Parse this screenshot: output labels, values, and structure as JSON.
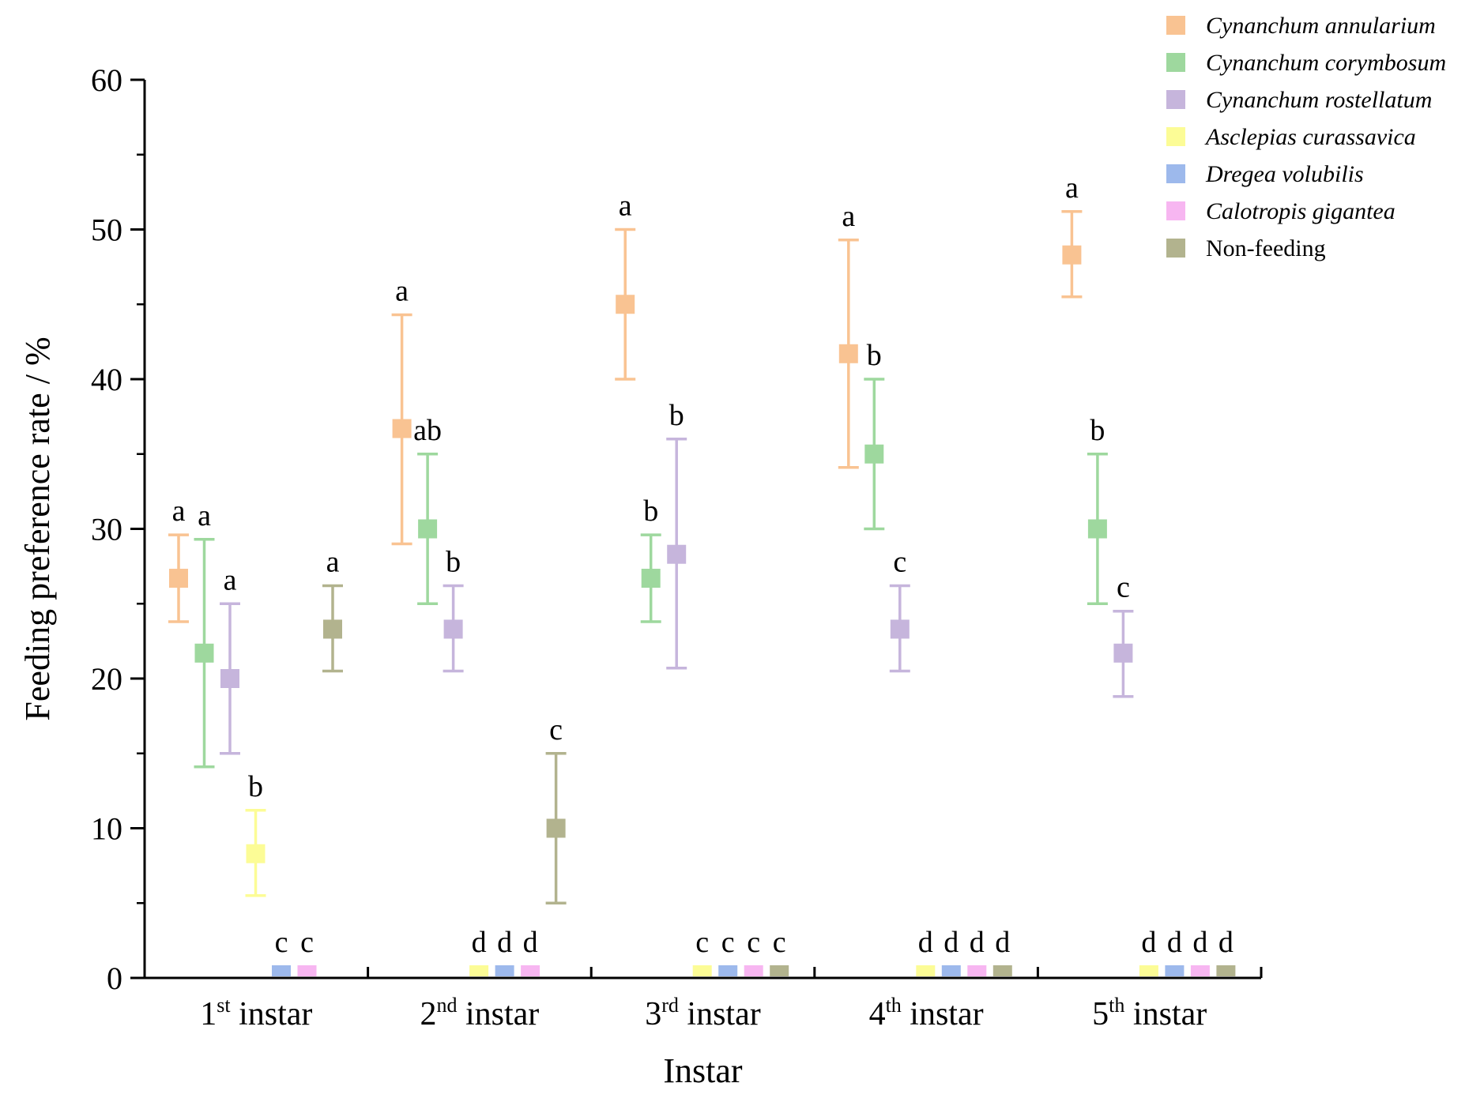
{
  "chart_data": {
    "type": "scatter",
    "xlabel": "Instar",
    "ylabel": "Feeding preference rate / %",
    "ylim": [
      0,
      60
    ],
    "yticks": [
      0,
      10,
      20,
      30,
      40,
      50,
      60
    ],
    "categories": [
      {
        "num": "1",
        "sup": "st",
        "word": " instar"
      },
      {
        "num": "2",
        "sup": "nd",
        "word": " instar"
      },
      {
        "num": "3",
        "sup": "rd",
        "word": " instar"
      },
      {
        "num": "4",
        "sup": "th",
        "word": " instar"
      },
      {
        "num": "5",
        "sup": "th",
        "word": " instar"
      }
    ],
    "series": [
      {
        "name": "Cynanchum annularium",
        "color": "#F9C392",
        "italic": true,
        "points": [
          {
            "mean": 26.7,
            "lo": 23.8,
            "hi": 29.6,
            "label": "a"
          },
          {
            "mean": 36.7,
            "lo": 29.0,
            "hi": 44.3,
            "label": "a"
          },
          {
            "mean": 45.0,
            "lo": 40.0,
            "hi": 50.0,
            "label": "a"
          },
          {
            "mean": 41.7,
            "lo": 34.1,
            "hi": 49.3,
            "label": "a"
          },
          {
            "mean": 48.3,
            "lo": 45.5,
            "hi": 51.2,
            "label": "a"
          }
        ]
      },
      {
        "name": "Cynanchum corymbosum",
        "color": "#9ED89E",
        "italic": true,
        "points": [
          {
            "mean": 21.7,
            "lo": 14.1,
            "hi": 29.3,
            "label": "a"
          },
          {
            "mean": 30.0,
            "lo": 25.0,
            "hi": 35.0,
            "label": "ab"
          },
          {
            "mean": 26.7,
            "lo": 23.8,
            "hi": 29.6,
            "label": "b"
          },
          {
            "mean": 35.0,
            "lo": 30.0,
            "hi": 40.0,
            "label": "b"
          },
          {
            "mean": 30.0,
            "lo": 25.0,
            "hi": 35.0,
            "label": "b"
          }
        ]
      },
      {
        "name": "Cynanchum rostellatum",
        "color": "#C6B5DC",
        "italic": true,
        "points": [
          {
            "mean": 20.0,
            "lo": 15.0,
            "hi": 25.0,
            "label": "a"
          },
          {
            "mean": 23.3,
            "lo": 20.5,
            "hi": 26.2,
            "label": "b"
          },
          {
            "mean": 28.3,
            "lo": 20.7,
            "hi": 36.0,
            "label": "b"
          },
          {
            "mean": 23.3,
            "lo": 20.5,
            "hi": 26.2,
            "label": "c"
          },
          {
            "mean": 21.7,
            "lo": 18.8,
            "hi": 24.5,
            "label": "c"
          }
        ]
      },
      {
        "name": "Asclepias curassavica",
        "color": "#FCFC96",
        "italic": true,
        "points": [
          {
            "mean": 8.3,
            "lo": 5.5,
            "hi": 11.2,
            "label": "b"
          },
          {
            "mean": 0,
            "label": "d"
          },
          {
            "mean": 0,
            "label": "c"
          },
          {
            "mean": 0,
            "label": "d"
          },
          {
            "mean": 0,
            "label": "d"
          }
        ]
      },
      {
        "name": "Dregea volubilis",
        "color": "#9DB9EC",
        "italic": true,
        "points": [
          {
            "mean": 0,
            "label": "c"
          },
          {
            "mean": 0,
            "label": "d"
          },
          {
            "mean": 0,
            "label": "c"
          },
          {
            "mean": 0,
            "label": "d"
          },
          {
            "mean": 0,
            "label": "d"
          }
        ]
      },
      {
        "name": "Calotropis gigantea",
        "color": "#F7B6F1",
        "italic": true,
        "points": [
          {
            "mean": 0,
            "label": "c"
          },
          {
            "mean": 0,
            "label": "d"
          },
          {
            "mean": 0,
            "label": "c"
          },
          {
            "mean": 0,
            "label": "d"
          },
          {
            "mean": 0,
            "label": "d"
          }
        ]
      },
      {
        "name": "Non-feeding",
        "color": "#B2B38E",
        "italic": false,
        "points": [
          {
            "mean": 23.3,
            "lo": 20.5,
            "hi": 26.2,
            "label": "a"
          },
          {
            "mean": 10.0,
            "lo": 5.0,
            "hi": 15.0,
            "label": "c"
          },
          {
            "mean": 0,
            "label": "c"
          },
          {
            "mean": 0,
            "label": "d"
          },
          {
            "mean": 0,
            "label": "d"
          }
        ]
      }
    ]
  }
}
